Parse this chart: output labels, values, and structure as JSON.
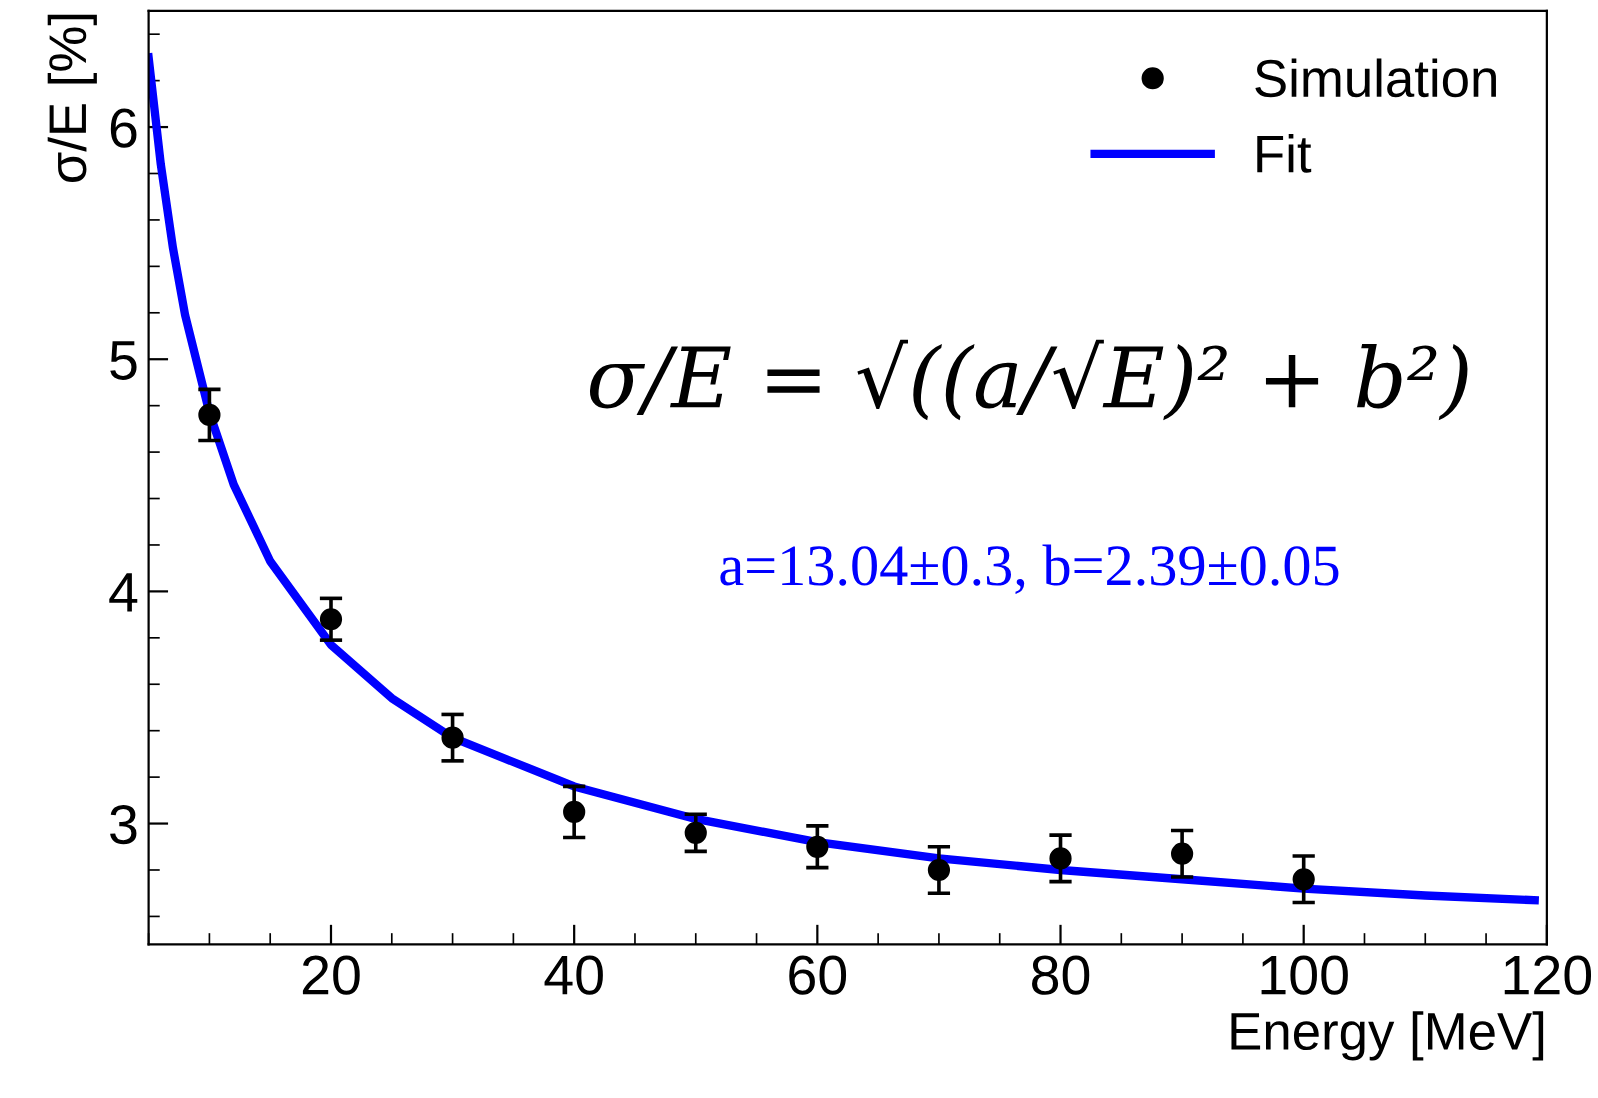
{
  "chart_data": {
    "type": "scatter",
    "xlabel": "Energy [MeV]",
    "ylabel": "σ/E [%]",
    "xlim": [
      5,
      120
    ],
    "ylim": [
      2.48,
      6.5
    ],
    "xticks": [
      20,
      40,
      60,
      80,
      100,
      120
    ],
    "yticks": [
      3,
      4,
      5,
      6
    ],
    "grid": false,
    "legend": "top right",
    "series": [
      {
        "name": "Simulation",
        "marker": "circle",
        "color": "#000000",
        "x": [
          10,
          20,
          30,
          40,
          50,
          60,
          70,
          80,
          90,
          100
        ],
        "values": [
          4.76,
          3.88,
          3.37,
          3.05,
          2.96,
          2.9,
          2.8,
          2.85,
          2.87,
          2.76
        ],
        "errors": [
          0.11,
          0.09,
          0.1,
          0.11,
          0.08,
          0.09,
          0.1,
          0.1,
          0.1,
          0.1
        ]
      },
      {
        "name": "Fit",
        "type": "line",
        "color": "#0000ff",
        "x": [
          5,
          6,
          7,
          8,
          10,
          12,
          15,
          20,
          25,
          30,
          40,
          50,
          60,
          70,
          80,
          90,
          100,
          110,
          119
        ],
        "values": [
          6.3,
          5.84,
          5.48,
          5.19,
          4.77,
          4.46,
          4.13,
          3.77,
          3.54,
          3.37,
          3.16,
          3.02,
          2.92,
          2.85,
          2.8,
          2.76,
          2.72,
          2.69,
          2.67
        ]
      }
    ],
    "annotations": [
      "σ/E = √((a/√E)² + b²)",
      "a=13.04±0.3, b=2.39±0.05"
    ]
  }
}
